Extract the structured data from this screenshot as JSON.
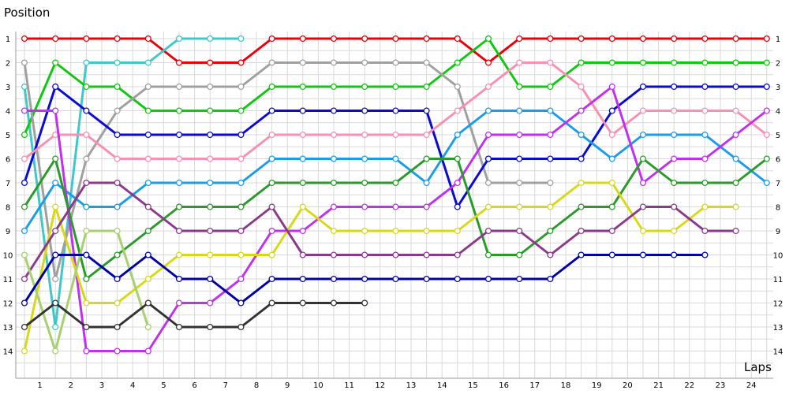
{
  "chart_data": {
    "type": "line",
    "xlabel": "Laps",
    "ylabel": "Position",
    "x_ticks": [
      1,
      2,
      3,
      4,
      5,
      6,
      7,
      8,
      9,
      10,
      11,
      12,
      13,
      14,
      15,
      16,
      17,
      18,
      19,
      20,
      21,
      22,
      23,
      24
    ],
    "y_ticks": [
      1,
      2,
      3,
      4,
      5,
      6,
      7,
      8,
      9,
      10,
      11,
      12,
      13,
      14
    ],
    "xlim": [
      0,
      24.5
    ],
    "ylim": [
      1,
      14
    ],
    "y_inverted": true,
    "y_ticks_both_sides": true,
    "grid": true,
    "series": [
      {
        "color": "#e8000b",
        "x": [
          0,
          1,
          2,
          3,
          4,
          5,
          6,
          7,
          8,
          9,
          10,
          11,
          12,
          13,
          14,
          15,
          16,
          17,
          18,
          19,
          20,
          21,
          22,
          23,
          24
        ],
        "y": [
          1,
          1,
          1,
          1,
          1,
          2,
          2,
          2,
          1,
          1,
          1,
          1,
          1,
          1,
          1,
          2,
          1,
          1,
          1,
          1,
          1,
          1,
          1,
          1,
          1
        ]
      },
      {
        "color": "#40c8c8",
        "x": [
          0,
          1,
          2,
          3,
          4,
          5,
          6,
          7
        ],
        "y": [
          3,
          13,
          2,
          2,
          2,
          1,
          1,
          1
        ]
      },
      {
        "color": "#11c811",
        "x": [
          0,
          1,
          2,
          3,
          4,
          5,
          6,
          7,
          8,
          9,
          10,
          11,
          12,
          13,
          14,
          15,
          16,
          17,
          18,
          19,
          20,
          21,
          22,
          23,
          24
        ],
        "y": [
          5,
          2,
          3,
          3,
          4,
          4,
          4,
          4,
          3,
          3,
          3,
          3,
          3,
          3,
          2,
          1,
          3,
          3,
          2,
          2,
          2,
          2,
          2,
          2,
          2
        ]
      },
      {
        "color": "#a0a0a0",
        "x": [
          0,
          1,
          2,
          3,
          4,
          5,
          6,
          7,
          8,
          9,
          10,
          11,
          12,
          13,
          14,
          15,
          16,
          17
        ],
        "y": [
          2,
          11,
          6,
          4,
          3,
          3,
          3,
          3,
          2,
          2,
          2,
          2,
          2,
          2,
          3,
          7,
          7,
          7
        ]
      },
      {
        "color": "#0a0ad2",
        "x": [
          0,
          1,
          2,
          3,
          4,
          5,
          6,
          7,
          8,
          9,
          10,
          11,
          12,
          13,
          14,
          15,
          16,
          17,
          18,
          19,
          20,
          21,
          22,
          23,
          24
        ],
        "y": [
          7,
          3,
          4,
          5,
          5,
          5,
          5,
          5,
          4,
          4,
          4,
          4,
          4,
          4,
          8,
          6,
          6,
          6,
          6,
          4,
          3,
          3,
          3,
          3,
          3
        ]
      },
      {
        "color": "#f890b0",
        "x": [
          0,
          1,
          2,
          3,
          4,
          5,
          6,
          7,
          8,
          9,
          10,
          11,
          12,
          13,
          14,
          15,
          16,
          17,
          18,
          19,
          20,
          21,
          22,
          23,
          24
        ],
        "y": [
          6,
          5,
          5,
          6,
          6,
          6,
          6,
          6,
          5,
          5,
          5,
          5,
          5,
          5,
          4,
          3,
          2,
          2,
          3,
          5,
          4,
          4,
          4,
          4,
          5
        ]
      },
      {
        "color": "#1a9de8",
        "x": [
          0,
          1,
          2,
          3,
          4,
          5,
          6,
          7,
          8,
          9,
          10,
          11,
          12,
          13,
          14,
          15,
          16,
          17,
          18,
          19,
          20,
          21,
          22,
          23,
          24
        ],
        "y": [
          9,
          7,
          8,
          8,
          7,
          7,
          7,
          7,
          6,
          6,
          6,
          6,
          6,
          7,
          5,
          4,
          4,
          4,
          5,
          6,
          5,
          5,
          5,
          6,
          7
        ]
      },
      {
        "color": "#c030f0",
        "x": [
          0,
          1,
          2,
          3,
          4,
          5,
          6,
          7,
          8,
          9,
          10,
          11,
          12,
          13,
          14,
          15,
          16,
          17,
          18,
          19,
          20,
          21,
          22,
          23,
          24
        ],
        "y": [
          4,
          4,
          14,
          14,
          14,
          12,
          12,
          11,
          9,
          9,
          8,
          8,
          8,
          8,
          7,
          5,
          5,
          5,
          4,
          3,
          7,
          6,
          6,
          5,
          4
        ]
      },
      {
        "color": "#2a9b2a",
        "x": [
          0,
          1,
          2,
          3,
          4,
          5,
          6,
          7,
          8,
          9,
          10,
          11,
          12,
          13,
          14,
          15,
          16,
          17,
          18,
          19,
          20,
          21,
          22,
          23,
          24
        ],
        "y": [
          8,
          6,
          11,
          10,
          9,
          8,
          8,
          8,
          7,
          7,
          7,
          7,
          7,
          6,
          6,
          10,
          10,
          9,
          8,
          8,
          6,
          7,
          7,
          7,
          6
        ]
      },
      {
        "color": "#d8d818",
        "x": [
          0,
          1,
          2,
          3,
          4,
          5,
          6,
          7,
          8,
          9,
          10,
          11,
          12,
          13,
          14,
          15,
          16,
          17,
          18,
          19,
          20,
          21,
          22,
          23
        ],
        "y": [
          14,
          8,
          12,
          12,
          11,
          10,
          10,
          10,
          10,
          8,
          9,
          9,
          9,
          9,
          9,
          8,
          8,
          8,
          7,
          7,
          9,
          9,
          8,
          8
        ]
      },
      {
        "color": "#8b3a8b",
        "x": [
          0,
          1,
          2,
          3,
          4,
          5,
          6,
          7,
          8,
          9,
          10,
          11,
          12,
          13,
          14,
          15,
          16,
          17,
          18,
          19,
          20,
          21,
          22,
          23
        ],
        "y": [
          11,
          9,
          7,
          7,
          8,
          9,
          9,
          9,
          8,
          10,
          10,
          10,
          10,
          10,
          10,
          9,
          9,
          10,
          9,
          9,
          8,
          8,
          9,
          9
        ]
      },
      {
        "color": "#a8d070",
        "x": [
          0,
          1,
          2,
          3,
          4
        ],
        "y": [
          10,
          14,
          9,
          9,
          13
        ]
      },
      {
        "color": "#0000a8",
        "x": [
          0,
          1,
          2,
          3,
          4,
          5,
          6,
          7,
          8,
          9,
          10,
          11,
          12,
          13,
          14,
          15,
          16,
          17,
          18,
          19,
          20,
          21,
          22
        ],
        "y": [
          12,
          10,
          10,
          11,
          10,
          11,
          11,
          12,
          11,
          11,
          11,
          11,
          11,
          11,
          11,
          11,
          11,
          11,
          10,
          10,
          10,
          10,
          10
        ]
      },
      {
        "color": "#333333",
        "x": [
          0,
          1,
          2,
          3,
          4,
          5,
          6,
          7,
          8,
          9,
          10,
          11
        ],
        "y": [
          13,
          12,
          13,
          13,
          12,
          13,
          13,
          13,
          12,
          12,
          12,
          12
        ]
      }
    ]
  }
}
